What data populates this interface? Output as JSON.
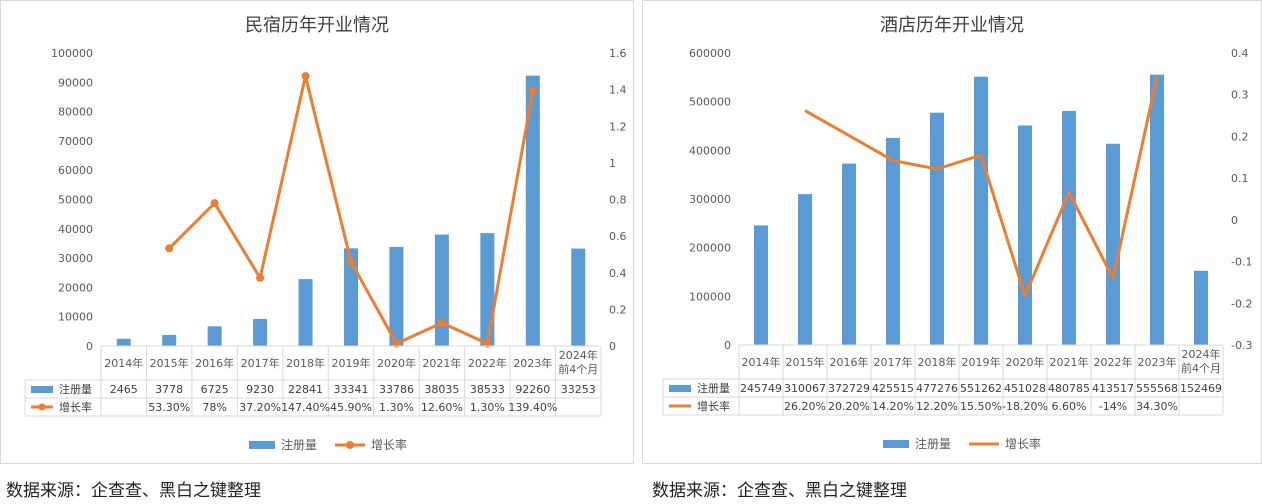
{
  "chart_data": [
    {
      "type": "bar+line",
      "title": "民宿历年开业情况",
      "categories": [
        "2014年",
        "2015年",
        "2016年",
        "2017年",
        "2018年",
        "2019年",
        "2020年",
        "2021年",
        "2022年",
        "2023年",
        "2024年前4个月"
      ],
      "y_left": {
        "min": 0,
        "max": 100000,
        "ticks": [
          "0",
          "10000",
          "20000",
          "30000",
          "40000",
          "50000",
          "60000",
          "70000",
          "80000",
          "90000",
          "100000"
        ]
      },
      "y_right": {
        "min": 0,
        "max": 1.6,
        "ticks": [
          "0",
          "0.2",
          "0.4",
          "0.6",
          "0.8",
          "1",
          "1.2",
          "1.4",
          "1.6"
        ]
      },
      "series": [
        {
          "name": "注册量",
          "kind": "bar",
          "axis": "left",
          "color": "#5b9bd5",
          "values": [
            2465,
            3778,
            6725,
            9230,
            22841,
            33341,
            33786,
            38035,
            38533,
            92260,
            33253
          ],
          "labels": [
            "2465",
            "3778",
            "6725",
            "9230",
            "22841",
            "33341",
            "33786",
            "38035",
            "38533",
            "92260",
            "33253"
          ]
        },
        {
          "name": "增长率",
          "kind": "line",
          "axis": "right",
          "color": "#ed7d31",
          "markers": true,
          "values": [
            null,
            0.533,
            0.78,
            0.372,
            1.474,
            0.459,
            0.013,
            0.126,
            0.013,
            1.394,
            null
          ],
          "labels": [
            "",
            "53.30%",
            "78%",
            "37.20%",
            "147.40%",
            "45.90%",
            "1.30%",
            "12.60%",
            "1.30%",
            "139.40%",
            ""
          ]
        }
      ],
      "legend": [
        "注册量",
        "增长率"
      ],
      "legend_position": "bottom",
      "grid": false
    },
    {
      "type": "bar+line",
      "title": "酒店历年开业情况",
      "categories": [
        "2014年",
        "2015年",
        "2016年",
        "2017年",
        "2018年",
        "2019年",
        "2020年",
        "2021年",
        "2022年",
        "2023年",
        "2024年前4个月"
      ],
      "y_left": {
        "min": 0,
        "max": 600000,
        "ticks": [
          "0",
          "100000",
          "200000",
          "300000",
          "400000",
          "500000",
          "600000"
        ]
      },
      "y_right": {
        "min": -0.3,
        "max": 0.4,
        "ticks": [
          "-0.3",
          "-0.2",
          "-0.1",
          "0",
          "0.1",
          "0.2",
          "0.3",
          "0.4"
        ]
      },
      "series": [
        {
          "name": "注册量",
          "kind": "bar",
          "axis": "left",
          "color": "#5b9bd5",
          "values": [
            245749,
            310067,
            372729,
            425515,
            477276,
            551262,
            451028,
            480785,
            413517,
            555568,
            152469
          ],
          "labels": [
            "245749",
            "310067",
            "372729",
            "425515",
            "477276",
            "551262",
            "451028",
            "480785",
            "413517",
            "555568",
            "152469"
          ]
        },
        {
          "name": "增长率",
          "kind": "line",
          "axis": "right",
          "color": "#ed7d31",
          "markers": false,
          "values": [
            null,
            0.262,
            0.202,
            0.142,
            0.122,
            0.155,
            -0.182,
            0.066,
            -0.14,
            0.343,
            null
          ],
          "labels": [
            "",
            "26.20%",
            "20.20%",
            "14.20%",
            "12.20%",
            "15.50%",
            "-18.20%",
            "6.60%",
            "-14%",
            "34.30%",
            ""
          ]
        }
      ],
      "legend": [
        "注册量",
        "增长率"
      ],
      "legend_position": "bottom",
      "grid": false
    }
  ],
  "footer": {
    "source_left": "数据来源：企查查、黑白之键整理",
    "source_right": "数据来源：企查查、黑白之键整理"
  }
}
